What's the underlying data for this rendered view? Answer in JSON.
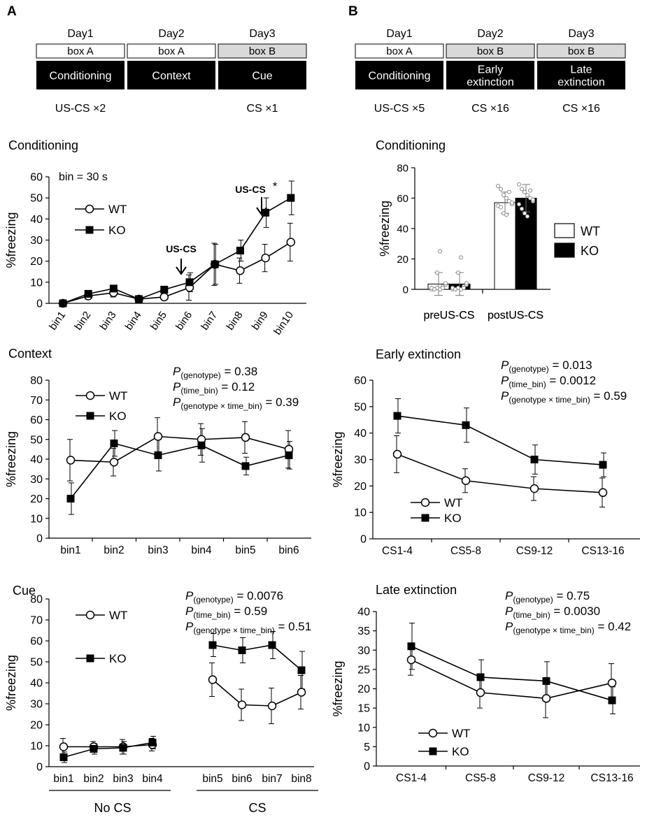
{
  "panel_A": {
    "letter": "A",
    "timeline": {
      "days": [
        "Day1",
        "Day2",
        "Day3"
      ],
      "boxes": [
        "box A",
        "box A",
        "box B"
      ],
      "phases": [
        [
          "Conditioning"
        ],
        [
          "Context"
        ],
        [
          "Cue"
        ]
      ],
      "notes": [
        "US-CS ×2",
        "",
        "CS ×1"
      ]
    }
  },
  "panel_B": {
    "letter": "B",
    "timeline": {
      "days": [
        "Day1",
        "Day2",
        "Day3"
      ],
      "boxes": [
        "box A",
        "box B",
        "box B"
      ],
      "phases": [
        [
          "Conditioning"
        ],
        [
          "Early",
          "extinction"
        ],
        [
          "Late",
          "extinction"
        ]
      ],
      "notes": [
        "US-CS ×5",
        "CS ×16",
        "CS ×16"
      ]
    }
  },
  "chart_data": [
    {
      "id": "a_cond",
      "type": "line",
      "title": "Conditioning",
      "ylabel": "%freezing",
      "ylim": [
        0,
        60
      ],
      "yticks": [
        0,
        10,
        20,
        30,
        40,
        50,
        60
      ],
      "categories": [
        "bin1",
        "bin2",
        "bin3",
        "bin4",
        "bin5",
        "bin6",
        "bin7",
        "bin8",
        "bin9",
        "bin10"
      ],
      "series": [
        {
          "name": "WT",
          "marker": "circle",
          "values": [
            0,
            3.5,
            5,
            2,
            3,
            7.5,
            18.5,
            15.5,
            21.5,
            29
          ],
          "err": [
            0,
            1.5,
            2,
            1,
            1,
            6,
            10,
            6,
            6.5,
            9
          ]
        },
        {
          "name": "KO",
          "marker": "square",
          "values": [
            0,
            4.5,
            7,
            2,
            6.5,
            10,
            18.5,
            25,
            43,
            50
          ],
          "err": [
            0,
            1.5,
            1.5,
            1,
            1.5,
            4.5,
            9.5,
            5,
            7,
            8
          ]
        }
      ],
      "annotations": {
        "bin": "bin = 30 s",
        "arrow1": "US-CS",
        "arrow2": "US-CS",
        "star": "*"
      }
    },
    {
      "id": "a_ctx",
      "type": "line",
      "title": "Context",
      "ylabel": "%freezing",
      "ylim": [
        0,
        80
      ],
      "yticks": [
        0,
        10,
        20,
        30,
        40,
        50,
        60,
        70,
        80
      ],
      "categories": [
        "bin1",
        "bin2",
        "bin3",
        "bin4",
        "bin5",
        "bin6"
      ],
      "series": [
        {
          "name": "WT",
          "marker": "circle",
          "values": [
            39.5,
            38.5,
            51.5,
            50,
            51,
            45
          ],
          "err": [
            10.5,
            7,
            9.5,
            8,
            8,
            9.5
          ]
        },
        {
          "name": "KO",
          "marker": "square",
          "values": [
            20,
            48,
            42,
            47,
            36.5,
            42
          ],
          "err": [
            8,
            6.5,
            8,
            8.5,
            4.5,
            7
          ]
        }
      ],
      "stats": [
        {
          "label": "P",
          "sub": "(genotype)",
          "value": " = 0.38"
        },
        {
          "label": "P",
          "sub": "(time_bin)",
          "value": " = 0.12"
        },
        {
          "label": "P",
          "sub": "(genotype × time_bin)",
          "value": " = 0.39"
        }
      ]
    },
    {
      "id": "a_cue",
      "type": "line",
      "title": "Cue",
      "ylabel": "%freezing",
      "ylim": [
        0,
        80
      ],
      "yticks": [
        0,
        10,
        20,
        30,
        40,
        50,
        60,
        70,
        80
      ],
      "categories": [
        "bin1",
        "bin2",
        "bin3",
        "bin4",
        "bin5",
        "bin6",
        "bin7",
        "bin8"
      ],
      "groups": [
        "No CS",
        "CS"
      ],
      "series": [
        {
          "name": "WT",
          "marker": "circle",
          "values": [
            9.5,
            9.5,
            9.5,
            10.5,
            41.5,
            29.5,
            29,
            35.5
          ],
          "err": [
            4,
            2.5,
            3.5,
            3,
            8,
            7.5,
            8.5,
            8
          ]
        },
        {
          "name": "KO",
          "marker": "square",
          "values": [
            4.5,
            8.5,
            9,
            11.5,
            58,
            55.5,
            58,
            46
          ],
          "err": [
            2.5,
            2.5,
            3,
            3,
            5.5,
            6,
            6.5,
            9
          ]
        }
      ],
      "stats": [
        {
          "label": "P",
          "sub": "(genotype)",
          "value": " = 0.0076"
        },
        {
          "label": "P",
          "sub": "(time_bin)",
          "value": " = 0.59"
        },
        {
          "label": "P",
          "sub": "(genotype × time_bin)",
          "value": " = 0.51"
        }
      ]
    },
    {
      "id": "b_cond",
      "type": "bar",
      "title": "Conditioning",
      "ylabel": "%freezing",
      "ylim": [
        0,
        80
      ],
      "yticks": [
        0,
        20,
        40,
        60,
        80
      ],
      "categories": [
        "preUS-CS",
        "postUS-CS"
      ],
      "series": [
        {
          "name": "WT",
          "fill": "white",
          "values": [
            3.5,
            57
          ],
          "err": [
            7.5,
            7
          ],
          "points": [
            [
              0,
              0,
              1,
              0,
              2,
              3,
              1,
              0,
              11,
              25,
              1,
              4
            ],
            [
              68,
              66,
              62,
              60,
              58,
              56,
              55,
              54,
              50,
              49,
              64,
              57
            ]
          ]
        },
        {
          "name": "KO",
          "fill": "black",
          "values": [
            3.5,
            60
          ],
          "err": [
            7.5,
            9
          ],
          "points": [
            [
              0,
              0,
              1,
              0,
              2,
              3,
              1,
              0,
              11,
              21,
              1,
              4
            ],
            [
              69,
              66,
              64,
              62,
              60,
              58,
              56,
              53,
              50,
              48,
              65,
              59
            ]
          ]
        }
      ]
    },
    {
      "id": "b_early",
      "type": "line",
      "title": "Early extinction",
      "ylabel": "%freezing",
      "ylim": [
        0,
        60
      ],
      "yticks": [
        0,
        10,
        20,
        30,
        40,
        50,
        60
      ],
      "categories": [
        "CS1-4",
        "CS5-8",
        "CS9-12",
        "CS13-16"
      ],
      "series": [
        {
          "name": "WT",
          "marker": "circle",
          "values": [
            32,
            22,
            19,
            17.5
          ],
          "err": [
            7,
            4.5,
            4.5,
            5.5
          ]
        },
        {
          "name": "KO",
          "marker": "square",
          "values": [
            46.5,
            43,
            30,
            28
          ],
          "err": [
            6.5,
            6.5,
            5.5,
            4.5
          ]
        }
      ],
      "stats": [
        {
          "label": "P",
          "sub": "(genotype)",
          "value": " = 0.013"
        },
        {
          "label": "P",
          "sub": "(time_bin)",
          "value": " = 0.0012"
        },
        {
          "label": "P",
          "sub": "(genotype × time_bin)",
          "value": " = 0.59"
        }
      ]
    },
    {
      "id": "b_late",
      "type": "line",
      "title": "Late extinction",
      "ylabel": "%freezing",
      "ylim": [
        0,
        40
      ],
      "yticks": [
        0,
        5,
        10,
        15,
        20,
        25,
        30,
        35,
        40
      ],
      "categories": [
        "CS1-4",
        "CS5-8",
        "CS9-12",
        "CS13-16"
      ],
      "series": [
        {
          "name": "WT",
          "marker": "circle",
          "values": [
            27.5,
            19,
            17.5,
            21.5
          ],
          "err": [
            4,
            4,
            5,
            5
          ]
        },
        {
          "name": "KO",
          "marker": "square",
          "values": [
            31,
            23,
            22,
            17
          ],
          "err": [
            6,
            4.5,
            5,
            3.5
          ]
        }
      ],
      "stats": [
        {
          "label": "P",
          "sub": "(genotype)",
          "value": " = 0.75"
        },
        {
          "label": "P",
          "sub": "(time_bin)",
          "value": " = 0.0030"
        },
        {
          "label": "P",
          "sub": "(genotype × time_bin)",
          "value": " = 0.42"
        }
      ]
    }
  ]
}
